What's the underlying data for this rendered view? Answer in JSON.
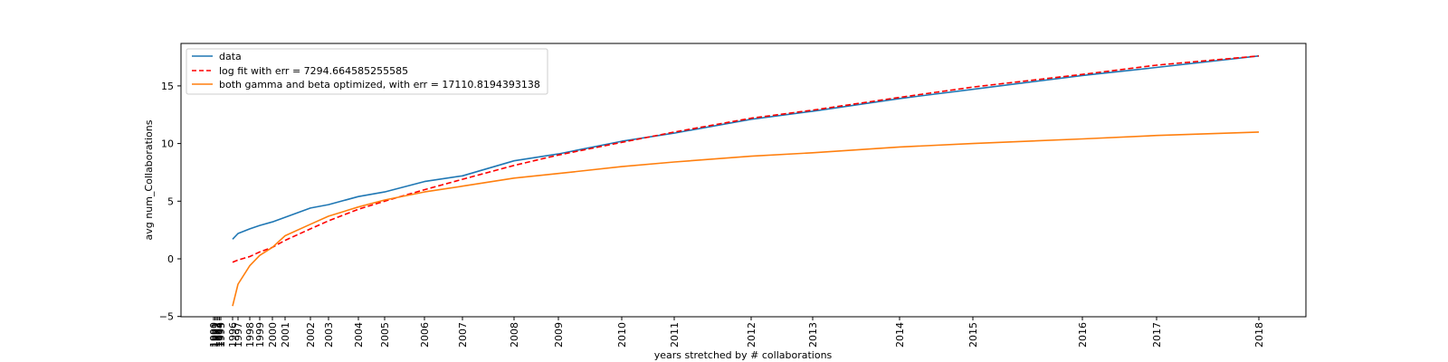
{
  "chart_data": {
    "type": "line",
    "xlabel": "years stretched by # collaborations",
    "ylabel": "avg num_Collaborations",
    "ylim": [
      -5,
      18.2
    ],
    "yticks": [
      -5,
      0,
      5,
      10,
      15
    ],
    "x_tick_labels": [
      "1990",
      "1991",
      "1992",
      "1993",
      "1994",
      "1995",
      "1996",
      "1997",
      "1998",
      "1999",
      "2000",
      "2001",
      "2002",
      "2003",
      "2004",
      "2005",
      "2006",
      "2007",
      "2008",
      "2009",
      "2010",
      "2011",
      "2012",
      "2013",
      "2014",
      "2015",
      "2016",
      "2017",
      "2018"
    ],
    "grid": false,
    "legend_position": "upper-left",
    "series": [
      {
        "name": "data",
        "color": "#1f77b4",
        "style": "solid",
        "values": [
          null,
          null,
          null,
          null,
          null,
          null,
          1.7,
          2.2,
          2.6,
          2.9,
          3.2,
          3.6,
          4.4,
          4.7,
          5.4,
          5.8,
          6.7,
          7.2,
          8.5,
          9.1,
          10.2,
          10.9,
          12.1,
          12.8,
          13.9,
          14.7,
          15.9,
          16.6,
          17.6
        ]
      },
      {
        "name": "log fit with err = 7294.664585255585",
        "color": "#ff0000",
        "style": "dashed",
        "values": [
          null,
          null,
          null,
          null,
          null,
          null,
          -0.3,
          -0.1,
          0.2,
          0.6,
          1.0,
          1.6,
          2.6,
          3.3,
          4.3,
          5.0,
          6.0,
          6.9,
          8.1,
          9.0,
          10.1,
          11.0,
          12.2,
          12.9,
          14.0,
          14.9,
          16.0,
          16.8,
          17.6
        ]
      },
      {
        "name": "both gamma and beta optimized, with err = 17110.8194393138",
        "color": "#ff7f0e",
        "style": "solid",
        "values": [
          null,
          null,
          null,
          null,
          null,
          null,
          -4.1,
          -2.2,
          -0.6,
          0.3,
          1.0,
          2.0,
          3.0,
          3.7,
          4.5,
          5.1,
          5.8,
          6.3,
          7.0,
          7.4,
          8.0,
          8.4,
          8.9,
          9.2,
          9.7,
          10.0,
          10.4,
          10.7,
          11.0
        ]
      }
    ]
  }
}
